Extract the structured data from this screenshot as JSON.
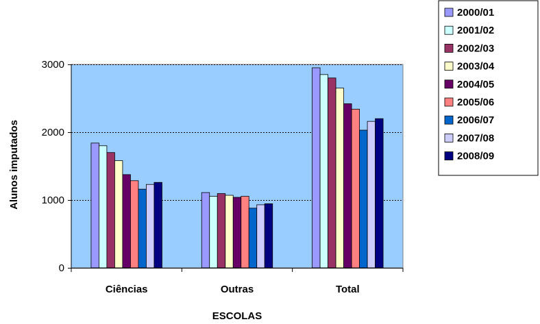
{
  "chart_data": {
    "type": "bar",
    "title": "",
    "xlabel": "ESCOLAS",
    "ylabel": "Alunos imputados",
    "ylim": [
      0,
      3000
    ],
    "yticks": [
      0,
      1000,
      2000,
      3000
    ],
    "grid": true,
    "plot_background": "#99CCFF",
    "legend_position": "top-right",
    "categories": [
      "Ciências",
      "Outras",
      "Total"
    ],
    "series": [
      {
        "name": "2000/01",
        "color": "#9999FF",
        "values": [
          1840,
          1110,
          2950
        ]
      },
      {
        "name": "2001/02",
        "color": "#CCFFFF",
        "values": [
          1800,
          1055,
          2850
        ]
      },
      {
        "name": "2002/03",
        "color": "#993366",
        "values": [
          1700,
          1095,
          2800
        ]
      },
      {
        "name": "2003/04",
        "color": "#FFFFCC",
        "values": [
          1580,
          1070,
          2650
        ]
      },
      {
        "name": "2004/05",
        "color": "#660066",
        "values": [
          1375,
          1040,
          2420
        ]
      },
      {
        "name": "2005/06",
        "color": "#FF8080",
        "values": [
          1285,
          1055,
          2340
        ]
      },
      {
        "name": "2006/07",
        "color": "#0066CC",
        "values": [
          1160,
          880,
          2030
        ]
      },
      {
        "name": "2007/08",
        "color": "#CCCCFF",
        "values": [
          1230,
          930,
          2160
        ]
      },
      {
        "name": "2008/09",
        "color": "#000080",
        "values": [
          1260,
          945,
          2200
        ]
      }
    ]
  }
}
